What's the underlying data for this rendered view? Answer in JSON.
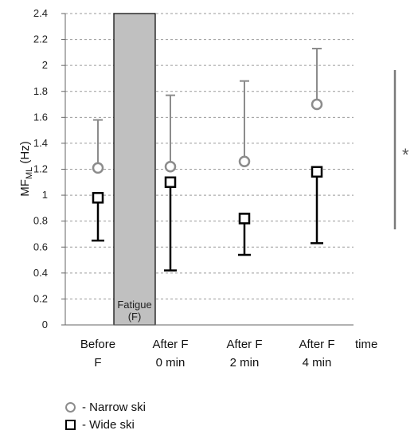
{
  "chart_data": {
    "type": "scatter",
    "categories": [
      [
        "Before",
        "F"
      ],
      [
        "After F",
        "0 min"
      ],
      [
        "After F",
        "2 min"
      ],
      [
        "After F",
        "4 min"
      ]
    ],
    "ylabel_main": "MF",
    "ylabel_sub": "ML",
    "ylabel_unit": " (Hz)",
    "xlabel": "time",
    "ylim": [
      0,
      2.4
    ],
    "yticks": [
      0,
      0.2,
      0.4,
      0.6,
      0.8,
      1,
      1.2,
      1.4,
      1.6,
      1.8,
      2,
      2.2,
      2.4
    ],
    "grid": true,
    "series": [
      {
        "name": "- Narrow ski",
        "marker": "circle",
        "color": "#8c8c8c",
        "values": [
          1.21,
          1.22,
          1.26,
          1.7
        ],
        "error_upper": [
          1.58,
          1.77,
          1.88,
          2.13
        ]
      },
      {
        "name": "- Wide ski",
        "marker": "square",
        "color": "#000000",
        "values": [
          0.98,
          1.1,
          0.82,
          1.18
        ],
        "error_lower": [
          0.65,
          0.42,
          0.54,
          0.63
        ]
      }
    ],
    "fatigue_band": {
      "label_line1": "Fatigue",
      "label_line2": "(F)",
      "color": "#c0c0c0"
    },
    "significance": {
      "label": "*"
    }
  }
}
